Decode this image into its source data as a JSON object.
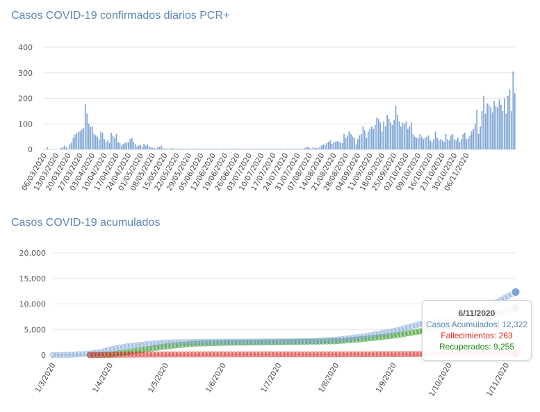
{
  "chart_data": [
    {
      "type": "bar",
      "title": "Casos COVID-19 confirmados diarios PCR+",
      "ylim": [
        0,
        400
      ],
      "yticks": [
        0,
        100,
        200,
        300,
        400
      ],
      "color": "#7ca3d3",
      "start_date": "2020-03-06",
      "xtick_labels": [
        "06/03/2020",
        "13/03/2020",
        "20/03/2020",
        "27/03/2020",
        "03/04/2020",
        "10/04/2020",
        "17/04/2020",
        "24/04/2020",
        "01/05/2020",
        "08/05/2020",
        "15/05/2020",
        "22/05/2020",
        "29/05/2020",
        "05/06/2020",
        "12/06/2020",
        "19/06/2020",
        "26/06/2020",
        "03/07/2020",
        "10/07/2020",
        "17/07/2020",
        "24/07/2020",
        "31/07/2020",
        "07/08/2020",
        "14/08/2020",
        "21/08/2020",
        "28/08/2020",
        "04/09/2020",
        "11/09/2020",
        "18/09/2020",
        "25/09/2020",
        "02/10/2020",
        "09/10/2020",
        "16/10/2020",
        "23/10/2020",
        "30/10/2020",
        "06/11/2020"
      ],
      "values": [
        0,
        0,
        8,
        0,
        0,
        0,
        0,
        0,
        0,
        0,
        5,
        10,
        15,
        8,
        3,
        20,
        28,
        45,
        58,
        65,
        68,
        72,
        78,
        85,
        178,
        140,
        100,
        88,
        90,
        60,
        55,
        50,
        40,
        70,
        65,
        40,
        30,
        35,
        25,
        65,
        55,
        45,
        60,
        28,
        25,
        15,
        22,
        25,
        30,
        28,
        40,
        45,
        30,
        20,
        12,
        15,
        18,
        10,
        22,
        15,
        20,
        12,
        8,
        5,
        5,
        3,
        8,
        10,
        15,
        5,
        3,
        3,
        2,
        3,
        5,
        3,
        2,
        2,
        4,
        2,
        3,
        2,
        2,
        2,
        3,
        3,
        2,
        3,
        2,
        3,
        2,
        2,
        3,
        2,
        2,
        2,
        3,
        2,
        2,
        2,
        3,
        2,
        2,
        2,
        2,
        3,
        2,
        2,
        2,
        2,
        2,
        3,
        2,
        3,
        2,
        2,
        2,
        2,
        2,
        3,
        2,
        2,
        2,
        2,
        3,
        2,
        2,
        2,
        2,
        3,
        2,
        2,
        2,
        2,
        3,
        2,
        2,
        2,
        2,
        2,
        2,
        3,
        2,
        2,
        2,
        2,
        3,
        2,
        2,
        3,
        2,
        5,
        8,
        10,
        5,
        3,
        8,
        5,
        6,
        5,
        10,
        15,
        20,
        18,
        25,
        30,
        35,
        22,
        28,
        30,
        32,
        30,
        28,
        25,
        60,
        45,
        55,
        70,
        60,
        50,
        45,
        20,
        40,
        55,
        60,
        90,
        75,
        45,
        70,
        80,
        90,
        80,
        95,
        125,
        120,
        105,
        70,
        110,
        90,
        135,
        120,
        105,
        95,
        115,
        170,
        135,
        110,
        90,
        105,
        100,
        110,
        80,
        90,
        105,
        60,
        50,
        45,
        45,
        60,
        50,
        40,
        45,
        50,
        55,
        35,
        30,
        40,
        70,
        45,
        35,
        40,
        35,
        30,
        60,
        40,
        35,
        55,
        60,
        40,
        35,
        45,
        30,
        40,
        60,
        65,
        40,
        45,
        55,
        70,
        80,
        100,
        155,
        60,
        90,
        150,
        210,
        140,
        180,
        175,
        165,
        145,
        190,
        170,
        165,
        195,
        175,
        150,
        200,
        140,
        210,
        235,
        150,
        305,
        220
      ]
    },
    {
      "type": "line",
      "title": "Casos COVID-19 acumulados",
      "ylim": [
        0,
        20000
      ],
      "yticks": [
        0,
        5000,
        10000,
        15000,
        20000
      ],
      "ytick_labels": [
        "0",
        "5,000",
        "10,000",
        "15,000",
        "20,000"
      ],
      "xtick_labels": [
        "1/3/2020",
        "1/4/2020",
        "1/5/2020",
        "1/6/2020",
        "1/7/2020",
        "1/8/2020",
        "1/9/2020",
        "1/10/2020",
        "1/11/2020"
      ],
      "x_start": "2020-03-01",
      "x_end": "2020-11-06",
      "series": [
        {
          "name": "Casos Acumulados",
          "color": "#7ca3d3",
          "points": [
            [
              "2020-03-01",
              0
            ],
            [
              "2020-03-10",
              40
            ],
            [
              "2020-03-20",
              250
            ],
            [
              "2020-03-27",
              600
            ],
            [
              "2020-04-01",
              1100
            ],
            [
              "2020-04-10",
              1700
            ],
            [
              "2020-04-20",
              2100
            ],
            [
              "2020-04-30",
              2450
            ],
            [
              "2020-05-15",
              2560
            ],
            [
              "2020-06-01",
              2620
            ],
            [
              "2020-07-01",
              2680
            ],
            [
              "2020-07-20",
              2760
            ],
            [
              "2020-08-01",
              3000
            ],
            [
              "2020-08-15",
              3600
            ],
            [
              "2020-09-01",
              4700
            ],
            [
              "2020-09-15",
              6000
            ],
            [
              "2020-10-01",
              7100
            ],
            [
              "2020-10-15",
              8200
            ],
            [
              "2020-10-25",
              10000
            ],
            [
              "2020-11-06",
              12322
            ]
          ]
        },
        {
          "name": "Fallecimientos",
          "color": "#e0221c",
          "points": [
            [
              "2020-03-21",
              0
            ],
            [
              "2020-04-10",
              60
            ],
            [
              "2020-05-01",
              120
            ],
            [
              "2020-06-01",
              130
            ],
            [
              "2020-08-01",
              140
            ],
            [
              "2020-09-01",
              170
            ],
            [
              "2020-10-01",
              210
            ],
            [
              "2020-11-06",
              263
            ]
          ]
        },
        {
          "name": "Recuperados",
          "color": "#1e8a12",
          "points": [
            [
              "2020-03-21",
              0
            ],
            [
              "2020-04-01",
              100
            ],
            [
              "2020-04-10",
              550
            ],
            [
              "2020-04-20",
              1100
            ],
            [
              "2020-05-01",
              1700
            ],
            [
              "2020-05-15",
              2200
            ],
            [
              "2020-06-01",
              2400
            ],
            [
              "2020-07-01",
              2500
            ],
            [
              "2020-08-01",
              2700
            ],
            [
              "2020-08-15",
              3100
            ],
            [
              "2020-09-01",
              3800
            ],
            [
              "2020-09-15",
              4600
            ],
            [
              "2020-10-01",
              5800
            ],
            [
              "2020-10-15",
              6800
            ],
            [
              "2020-10-25",
              7700
            ],
            [
              "2020-11-06",
              9255
            ]
          ]
        }
      ],
      "tooltip": {
        "date": "6/11/2020",
        "lines": [
          {
            "text": "Casos Acumulados: 12,322",
            "color": "#5b87b3"
          },
          {
            "text": "Fallecimientos: 263",
            "color": "#e0221c"
          },
          {
            "text": "Recuperados: 9,255",
            "color": "#1e8a12"
          }
        ]
      }
    }
  ]
}
